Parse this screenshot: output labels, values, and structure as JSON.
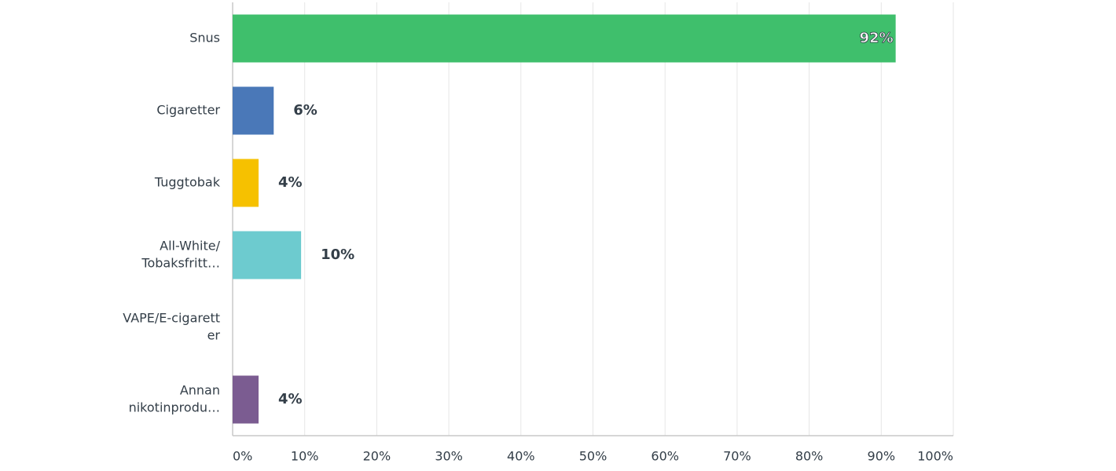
{
  "chart_data": {
    "type": "hbar",
    "categories": [
      [
        "Snus"
      ],
      [
        "Cigaretter"
      ],
      [
        "Tuggtobak"
      ],
      [
        "All-White/",
        "Tobaksfritt…"
      ],
      [
        "VAPE/E-cigarett",
        "er"
      ],
      [
        "Annan",
        "nikotinprodu…"
      ]
    ],
    "values": [
      92,
      5.7,
      3.6,
      9.5,
      0,
      3.6
    ],
    "value_labels": [
      "92%",
      "6%",
      "4%",
      "10%",
      null,
      "4%"
    ],
    "colors": [
      "#3fbf6c",
      "#4a78b8",
      "#f6c100",
      "#6dcbcf",
      null,
      "#7b5c91"
    ],
    "xlim": [
      0,
      100
    ],
    "xticks": [
      {
        "value": 0,
        "label": "0%"
      },
      {
        "value": 10,
        "label": "10%"
      },
      {
        "value": 20,
        "label": "20%"
      },
      {
        "value": 30,
        "label": "30%"
      },
      {
        "value": 40,
        "label": "40%"
      },
      {
        "value": 50,
        "label": "50%"
      },
      {
        "value": 60,
        "label": "60%"
      },
      {
        "value": 70,
        "label": "70%"
      },
      {
        "value": 80,
        "label": "80%"
      },
      {
        "value": 90,
        "label": "90%"
      },
      {
        "value": 100,
        "label": "100%"
      }
    ],
    "grid": true
  }
}
